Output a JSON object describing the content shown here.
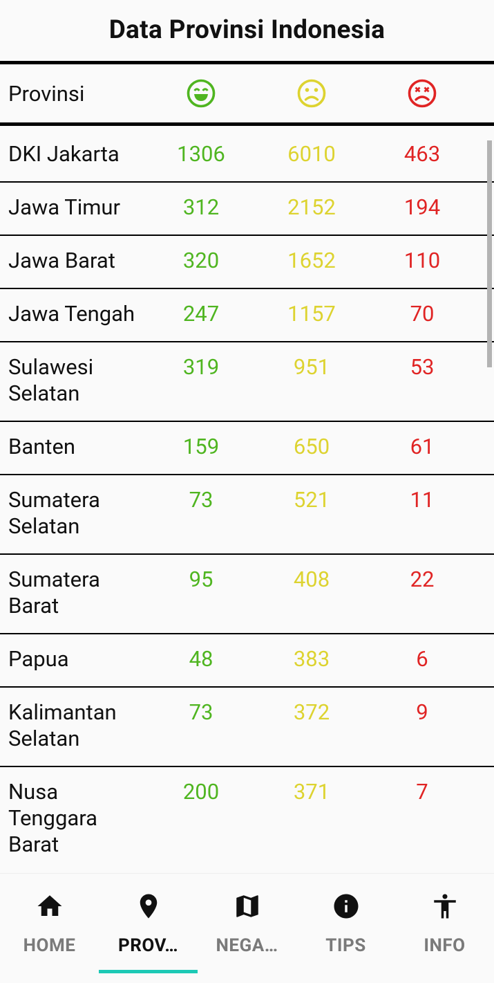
{
  "app": {
    "title": "Data Provinsi Indonesia"
  },
  "table": {
    "header": {
      "province_label": "Provinsi",
      "icons": [
        "happy-face-icon",
        "sad-face-icon",
        "dead-face-icon"
      ]
    },
    "rows": [
      {
        "province": "DKI Jakarta",
        "recovered": "1306",
        "positive": "6010",
        "deaths": "463"
      },
      {
        "province": "Jawa Timur",
        "recovered": "312",
        "positive": "2152",
        "deaths": "194"
      },
      {
        "province": "Jawa Barat",
        "recovered": "320",
        "positive": "1652",
        "deaths": "110"
      },
      {
        "province": "Jawa Tengah",
        "recovered": "247",
        "positive": "1157",
        "deaths": "70"
      },
      {
        "province": "Sulawesi Selatan",
        "recovered": "319",
        "positive": "951",
        "deaths": "53"
      },
      {
        "province": "Banten",
        "recovered": "159",
        "positive": "650",
        "deaths": "61"
      },
      {
        "province": "Sumatera Selatan",
        "recovered": "73",
        "positive": "521",
        "deaths": "11"
      },
      {
        "province": "Sumatera Barat",
        "recovered": "95",
        "positive": "408",
        "deaths": "22"
      },
      {
        "province": "Papua",
        "recovered": "48",
        "positive": "383",
        "deaths": "6"
      },
      {
        "province": "Kalimantan Selatan",
        "recovered": "73",
        "positive": "372",
        "deaths": "9"
      },
      {
        "province": "Nusa Tenggara Barat",
        "recovered": "200",
        "positive": "371",
        "deaths": "7"
      }
    ]
  },
  "colors": {
    "recovered": "#4fb520",
    "positive": "#ddd330",
    "deaths": "#e02424",
    "accent": "#1cc9b5"
  },
  "nav": {
    "items": [
      {
        "label": "HOME",
        "icon": "home-icon"
      },
      {
        "label": "PROV…",
        "icon": "location-pin-icon"
      },
      {
        "label": "NEGA…",
        "icon": "map-icon"
      },
      {
        "label": "TIPS",
        "icon": "info-circle-icon"
      },
      {
        "label": "INFO",
        "icon": "person-icon"
      }
    ],
    "active_index": 1
  }
}
